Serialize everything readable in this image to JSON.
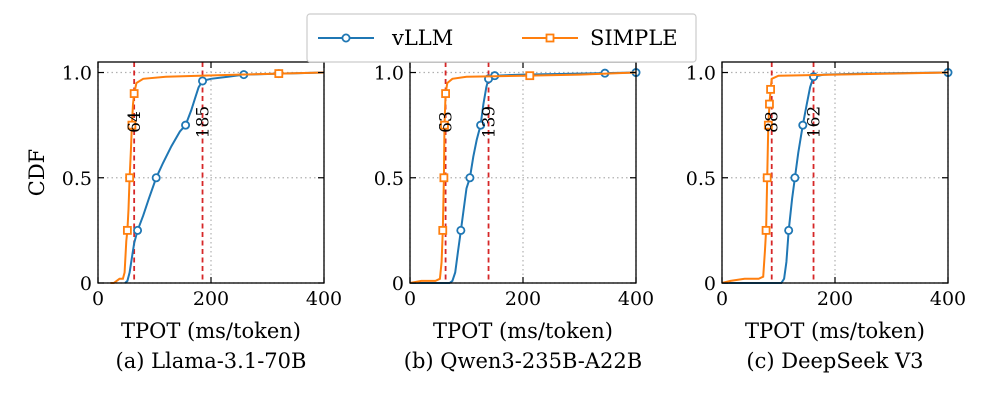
{
  "legend": {
    "entries": [
      {
        "name": "vLLM",
        "color": "#1f77b4",
        "marker": "circle"
      },
      {
        "name": "SIMPLE",
        "color": "#ff7f0e",
        "marker": "square"
      }
    ]
  },
  "colors": {
    "vllm": "#1f77b4",
    "simple": "#ff7f0e",
    "threshold": "#d62728",
    "grid": "#b0b0b0"
  },
  "chart_data": [
    {
      "type": "line",
      "caption": "(a) Llama-3.1-70B",
      "xlabel": "TPOT (ms/token)",
      "ylabel": "CDF",
      "xlim": [
        0,
        400
      ],
      "ylim": [
        0,
        1.05
      ],
      "xticks": [
        "0",
        "200",
        "400"
      ],
      "yticks": [
        "0",
        "0.5",
        "1.0"
      ],
      "grid": true,
      "series": [
        {
          "name": "vLLM",
          "points": [
            [
              48,
              0
            ],
            [
              52,
              0.01
            ],
            [
              56,
              0.05
            ],
            [
              60,
              0.12
            ],
            [
              64,
              0.19
            ],
            [
              70,
              0.25
            ],
            [
              80,
              0.32
            ],
            [
              90,
              0.4
            ],
            [
              103,
              0.5
            ],
            [
              115,
              0.57
            ],
            [
              130,
              0.65
            ],
            [
              145,
              0.72
            ],
            [
              155,
              0.75
            ],
            [
              165,
              0.82
            ],
            [
              172,
              0.88
            ],
            [
              178,
              0.93
            ],
            [
              185,
              0.96
            ],
            [
              200,
              0.97
            ],
            [
              230,
              0.98
            ],
            [
              258,
              0.99
            ],
            [
              300,
              0.993
            ],
            [
              320,
              0.995
            ],
            [
              350,
              0.997
            ],
            [
              400,
              1.0
            ]
          ],
          "markers": [
            [
              70,
              0.25
            ],
            [
              103,
              0.5
            ],
            [
              155,
              0.75
            ],
            [
              185,
              0.96
            ],
            [
              258,
              0.99
            ],
            [
              320,
              0.995
            ]
          ]
        },
        {
          "name": "SIMPLE",
          "points": [
            [
              22,
              0
            ],
            [
              28,
              0
            ],
            [
              33,
              0.01
            ],
            [
              38,
              0.02
            ],
            [
              44,
              0.02
            ],
            [
              47,
              0.05
            ],
            [
              50,
              0.2
            ],
            [
              52,
              0.25
            ],
            [
              54,
              0.35
            ],
            [
              56,
              0.5
            ],
            [
              58,
              0.62
            ],
            [
              60,
              0.75
            ],
            [
              62,
              0.85
            ],
            [
              64,
              0.9
            ],
            [
              68,
              0.95
            ],
            [
              80,
              0.97
            ],
            [
              120,
              0.98
            ],
            [
              180,
              0.985
            ],
            [
              250,
              0.99
            ],
            [
              320,
              0.995
            ],
            [
              400,
              1.0
            ]
          ],
          "markers": [
            [
              52,
              0.25
            ],
            [
              56,
              0.5
            ],
            [
              60,
              0.75
            ],
            [
              64,
              0.9
            ],
            [
              320,
              0.995
            ]
          ]
        }
      ],
      "thresholds": [
        {
          "x": 64,
          "label": "64"
        },
        {
          "x": 185,
          "label": "185"
        }
      ]
    },
    {
      "type": "line",
      "caption": "(b) Qwen3-235B-A22B",
      "xlabel": "TPOT (ms/token)",
      "ylabel": "",
      "xlim": [
        0,
        400
      ],
      "ylim": [
        0,
        1.05
      ],
      "xticks": [
        "0",
        "200",
        "400"
      ],
      "yticks": [
        "0",
        "0.5",
        "1.0"
      ],
      "grid": true,
      "series": [
        {
          "name": "vLLM",
          "points": [
            [
              0,
              0
            ],
            [
              70,
              0
            ],
            [
              75,
              0.01
            ],
            [
              80,
              0.05
            ],
            [
              85,
              0.15
            ],
            [
              90,
              0.25
            ],
            [
              95,
              0.35
            ],
            [
              100,
              0.45
            ],
            [
              106,
              0.5
            ],
            [
              112,
              0.6
            ],
            [
              118,
              0.68
            ],
            [
              125,
              0.75
            ],
            [
              130,
              0.85
            ],
            [
              135,
              0.93
            ],
            [
              139,
              0.97
            ],
            [
              150,
              0.985
            ],
            [
              200,
              0.99
            ],
            [
              300,
              0.995
            ],
            [
              400,
              1.0
            ]
          ],
          "markers": [
            [
              90,
              0.25
            ],
            [
              106,
              0.5
            ],
            [
              125,
              0.75
            ],
            [
              139,
              0.97
            ],
            [
              150,
              0.985
            ],
            [
              345,
              0.997
            ],
            [
              400,
              1.0
            ]
          ]
        },
        {
          "name": "SIMPLE",
          "points": [
            [
              0,
              0
            ],
            [
              20,
              0.01
            ],
            [
              45,
              0.01
            ],
            [
              53,
              0.02
            ],
            [
              56,
              0.1
            ],
            [
              58,
              0.25
            ],
            [
              60,
              0.5
            ],
            [
              61,
              0.75
            ],
            [
              63,
              0.9
            ],
            [
              66,
              0.95
            ],
            [
              75,
              0.97
            ],
            [
              100,
              0.98
            ],
            [
              200,
              0.985
            ],
            [
              300,
              0.99
            ],
            [
              400,
              1.0
            ]
          ],
          "markers": [
            [
              58,
              0.25
            ],
            [
              60,
              0.5
            ],
            [
              61,
              0.75
            ],
            [
              63,
              0.9
            ],
            [
              212,
              0.985
            ]
          ]
        }
      ],
      "thresholds": [
        {
          "x": 63,
          "label": "63"
        },
        {
          "x": 139,
          "label": "139"
        }
      ]
    },
    {
      "type": "line",
      "caption": "(c) DeepSeek V3",
      "xlabel": "TPOT (ms/token)",
      "ylabel": "",
      "xlim": [
        0,
        400
      ],
      "ylim": [
        0,
        1.05
      ],
      "xticks": [
        "0",
        "200",
        "400"
      ],
      "yticks": [
        "0",
        "0.5",
        "1.0"
      ],
      "grid": true,
      "series": [
        {
          "name": "vLLM",
          "points": [
            [
              0,
              0
            ],
            [
              105,
              0
            ],
            [
              110,
              0.02
            ],
            [
              114,
              0.1
            ],
            [
              118,
              0.25
            ],
            [
              124,
              0.4
            ],
            [
              129,
              0.5
            ],
            [
              135,
              0.62
            ],
            [
              143,
              0.75
            ],
            [
              150,
              0.85
            ],
            [
              156,
              0.93
            ],
            [
              162,
              0.98
            ],
            [
              180,
              0.99
            ],
            [
              250,
              0.995
            ],
            [
              400,
              1.0
            ]
          ],
          "markers": [
            [
              118,
              0.25
            ],
            [
              129,
              0.5
            ],
            [
              143,
              0.75
            ],
            [
              162,
              0.98
            ],
            [
              400,
              1.0
            ]
          ]
        },
        {
          "name": "SIMPLE",
          "points": [
            [
              0,
              0
            ],
            [
              15,
              0.01
            ],
            [
              40,
              0.02
            ],
            [
              65,
              0.02
            ],
            [
              73,
              0.03
            ],
            [
              76,
              0.15
            ],
            [
              78,
              0.25
            ],
            [
              80,
              0.5
            ],
            [
              82,
              0.75
            ],
            [
              84,
              0.85
            ],
            [
              86,
              0.92
            ],
            [
              88,
              0.97
            ],
            [
              100,
              0.985
            ],
            [
              200,
              0.99
            ],
            [
              300,
              0.995
            ],
            [
              400,
              1.0
            ]
          ],
          "markers": [
            [
              78,
              0.25
            ],
            [
              80,
              0.5
            ],
            [
              82,
              0.75
            ],
            [
              84,
              0.85
            ],
            [
              86,
              0.92
            ]
          ]
        }
      ],
      "thresholds": [
        {
          "x": 88,
          "label": "88"
        },
        {
          "x": 162,
          "label": "162"
        }
      ]
    }
  ]
}
